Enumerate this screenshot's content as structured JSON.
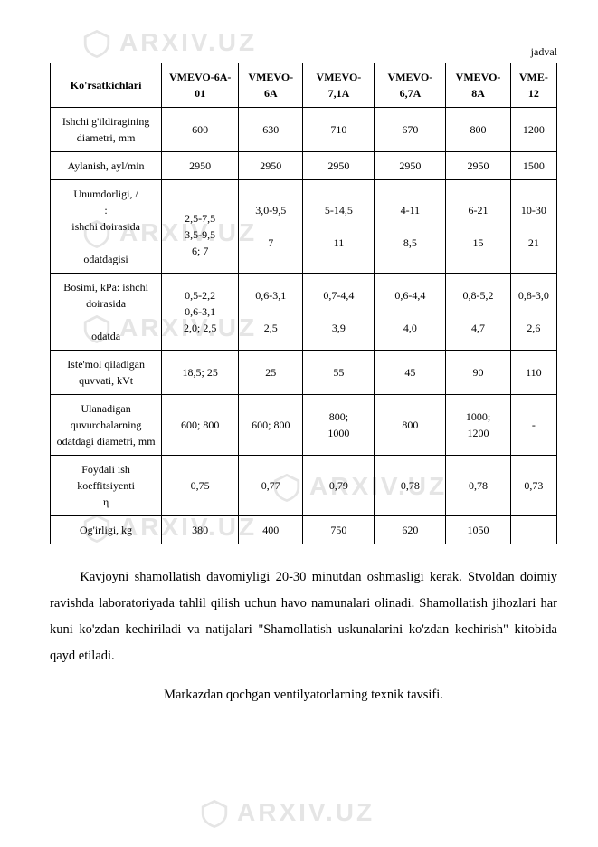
{
  "caption_top": "jadval",
  "table": {
    "header": [
      "Ko'rsatkichlari",
      "VMEVO-6A-01",
      "VMEVO-6A",
      "VMEVO-7,1A",
      "VMEVO-6,7A",
      "VMEVO-8A",
      "VME-12"
    ],
    "rows": [
      {
        "label": "Ishchi g'ildiragining diametri, mm",
        "cells": [
          "600",
          "630",
          "710",
          "670",
          "800",
          "1200"
        ]
      },
      {
        "label": "Aylanish, ayl/min",
        "cells": [
          "2950",
          "2950",
          "2950",
          "2950",
          "2950",
          "1500"
        ]
      },
      {
        "label": "Unumdorligi, /\n:\nishchi doirasida\n\nodatdagisi",
        "cells": [
          "\n2,5-7,5\n3,5-9,5\n6; 7",
          "3,0-9,5\n\n7",
          "5-14,5\n\n11",
          "4-11\n\n8,5",
          "6-21\n\n15",
          "10-30\n\n21"
        ]
      },
      {
        "label": "Bosimi, kPa: ishchi doirasida\n\nodatda",
        "cells": [
          "0,5-2,2\n0,6-3,1\n2,0; 2,5",
          "0,6-3,1\n\n2,5",
          "0,7-4,4\n\n3,9",
          "0,6-4,4\n\n4,0",
          "0,8-5,2\n\n4,7",
          "0,8-3,0\n\n2,6"
        ]
      },
      {
        "label": "Iste'mol qiladigan quvvati, kVt",
        "cells": [
          "18,5; 25",
          "25",
          "55",
          "45",
          "90",
          "110"
        ]
      },
      {
        "label": "Ulanadigan quvurchalarning odatdagi diametri, mm",
        "cells": [
          "600; 800",
          "600; 800",
          "800;\n1000",
          "800",
          "1000;\n1200",
          "-"
        ]
      },
      {
        "label": "Foydali ish koeffitsiyenti\nη",
        "cells": [
          "0,75",
          "0,77",
          "0,79",
          "0,78",
          "0,78",
          "0,73"
        ]
      },
      {
        "label": "Og'irligi, kg",
        "cells": [
          "380",
          "400",
          "750",
          "620",
          "1050",
          ""
        ]
      }
    ]
  },
  "paragraph": "Kavjoyni shamollatish davomiyligi 20-30 minutdan oshmasligi kerak. Stvoldan doimiy ravishda laboratoriyada tahlil qilish uchun havo namunalari olinadi. Shamollatish jihozlari har kuni ko'zdan kechiriladi va natijalari \"Shamollatish uskunalarini ko'zdan kechirish\" kitobida qayd etiladi.",
  "subtitle": "Markazdan qochgan ventilyatorlarning texnik tavsifi.",
  "watermark_text": "ARXIV.UZ",
  "colors": {
    "text": "#000000",
    "background": "#ffffff",
    "border": "#000000",
    "watermark": "#e5e5e5"
  }
}
